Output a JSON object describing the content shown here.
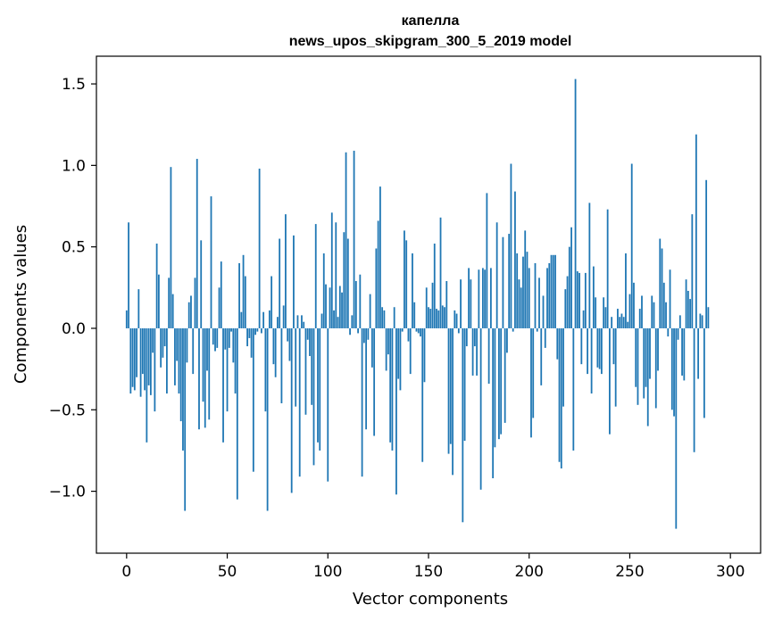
{
  "chart_data": {
    "type": "bar",
    "title": "капелла",
    "subtitle": "news_upos_skipgram_300_5_2019 model",
    "xlabel": "Vector components",
    "ylabel": "Components values",
    "xlim": [
      -15,
      315
    ],
    "ylim": [
      -1.38,
      1.67
    ],
    "xticks": [
      0,
      50,
      100,
      150,
      200,
      250,
      300
    ],
    "yticks": [
      -1.0,
      -0.5,
      0.0,
      0.5,
      1.0,
      1.5
    ],
    "ytick_labels": [
      "−1.0",
      "−0.5",
      "0.0",
      "0.5",
      "1.0",
      "1.5"
    ],
    "bar_color": "#1f77b4",
    "grid": false,
    "legend": "none",
    "values": [
      0.11,
      0.65,
      -0.4,
      -0.36,
      -0.38,
      -0.3,
      0.24,
      -0.42,
      -0.28,
      -0.38,
      -0.7,
      -0.35,
      -0.41,
      -0.15,
      -0.51,
      0.52,
      0.33,
      -0.24,
      -0.18,
      -0.11,
      -0.4,
      0.31,
      0.99,
      0.21,
      -0.35,
      -0.2,
      -0.4,
      -0.57,
      -0.75,
      -1.12,
      -0.21,
      0.16,
      0.2,
      -0.28,
      0.31,
      1.04,
      -0.62,
      0.54,
      -0.45,
      -0.61,
      -0.26,
      -0.56,
      0.81,
      -0.1,
      -0.14,
      -0.12,
      0.25,
      0.41,
      -0.7,
      -0.13,
      -0.51,
      -0.12,
      -0.02,
      -0.21,
      -0.4,
      -1.05,
      0.4,
      0.1,
      0.45,
      0.32,
      -0.11,
      -0.06,
      -0.18,
      -0.88,
      -0.04,
      -0.02,
      0.98,
      -0.03,
      0.1,
      -0.51,
      -1.12,
      0.11,
      0.32,
      -0.22,
      -0.3,
      0.07,
      0.55,
      -0.46,
      0.14,
      0.7,
      -0.08,
      -0.2,
      -1.01,
      0.57,
      -0.48,
      0.08,
      -0.91,
      0.08,
      0.04,
      -0.53,
      -0.07,
      -0.17,
      -0.47,
      -0.84,
      0.64,
      -0.7,
      -0.75,
      0.09,
      0.46,
      0.27,
      -0.94,
      0.25,
      0.71,
      0.11,
      0.65,
      0.07,
      0.26,
      0.22,
      0.59,
      1.08,
      0.55,
      -0.04,
      0.08,
      1.09,
      0.29,
      -0.03,
      0.33,
      -0.91,
      -0.09,
      -0.62,
      -0.07,
      0.21,
      -0.24,
      -0.66,
      0.49,
      0.66,
      0.87,
      0.13,
      0.11,
      -0.26,
      -0.16,
      -0.7,
      -0.75,
      0.13,
      -1.02,
      -0.31,
      -0.38,
      -0.02,
      0.6,
      0.54,
      -0.08,
      -0.28,
      0.46,
      0.16,
      -0.02,
      -0.03,
      -0.05,
      -0.82,
      -0.33,
      0.25,
      0.13,
      0.12,
      0.28,
      0.52,
      0.12,
      0.11,
      0.68,
      0.14,
      0.13,
      0.29,
      -0.77,
      -0.71,
      -0.9,
      0.11,
      0.09,
      -0.03,
      0.3,
      -1.19,
      -0.69,
      -0.11,
      0.37,
      0.3,
      -0.29,
      -0.11,
      -0.29,
      0.36,
      -0.99,
      0.37,
      0.36,
      0.83,
      -0.34,
      0.37,
      -0.92,
      -0.73,
      0.65,
      -0.68,
      -0.65,
      0.56,
      -0.58,
      -0.15,
      0.58,
      1.01,
      -0.02,
      0.84,
      0.46,
      0.3,
      0.25,
      0.44,
      0.6,
      0.47,
      0.37,
      -0.67,
      -0.55,
      0.4,
      -0.02,
      0.31,
      -0.35,
      0.2,
      -0.12,
      0.37,
      0.4,
      0.45,
      0.45,
      0.45,
      -0.19,
      -0.82,
      -0.86,
      -0.48,
      0.24,
      0.32,
      0.5,
      0.62,
      -0.75,
      1.53,
      0.35,
      0.34,
      -0.22,
      0.11,
      0.34,
      -0.28,
      0.77,
      -0.4,
      0.38,
      0.19,
      -0.24,
      -0.25,
      -0.28,
      0.19,
      0.13,
      0.73,
      -0.65,
      0.07,
      -0.22,
      -0.48,
      0.12,
      0.07,
      0.09,
      0.07,
      0.46,
      0.04,
      0.21,
      1.01,
      0.28,
      -0.36,
      -0.47,
      0.12,
      0.2,
      -0.43,
      -0.36,
      -0.6,
      -0.31,
      0.2,
      0.16,
      -0.49,
      -0.26,
      0.55,
      0.49,
      0.28,
      0.16,
      -0.05,
      0.36,
      -0.5,
      -0.54,
      -1.23,
      -0.07,
      0.08,
      -0.29,
      -0.32,
      0.3,
      0.23,
      0.18,
      0.7,
      -0.76,
      1.19,
      -0.31,
      0.09,
      0.08,
      -0.55,
      0.91,
      0.13
    ]
  }
}
